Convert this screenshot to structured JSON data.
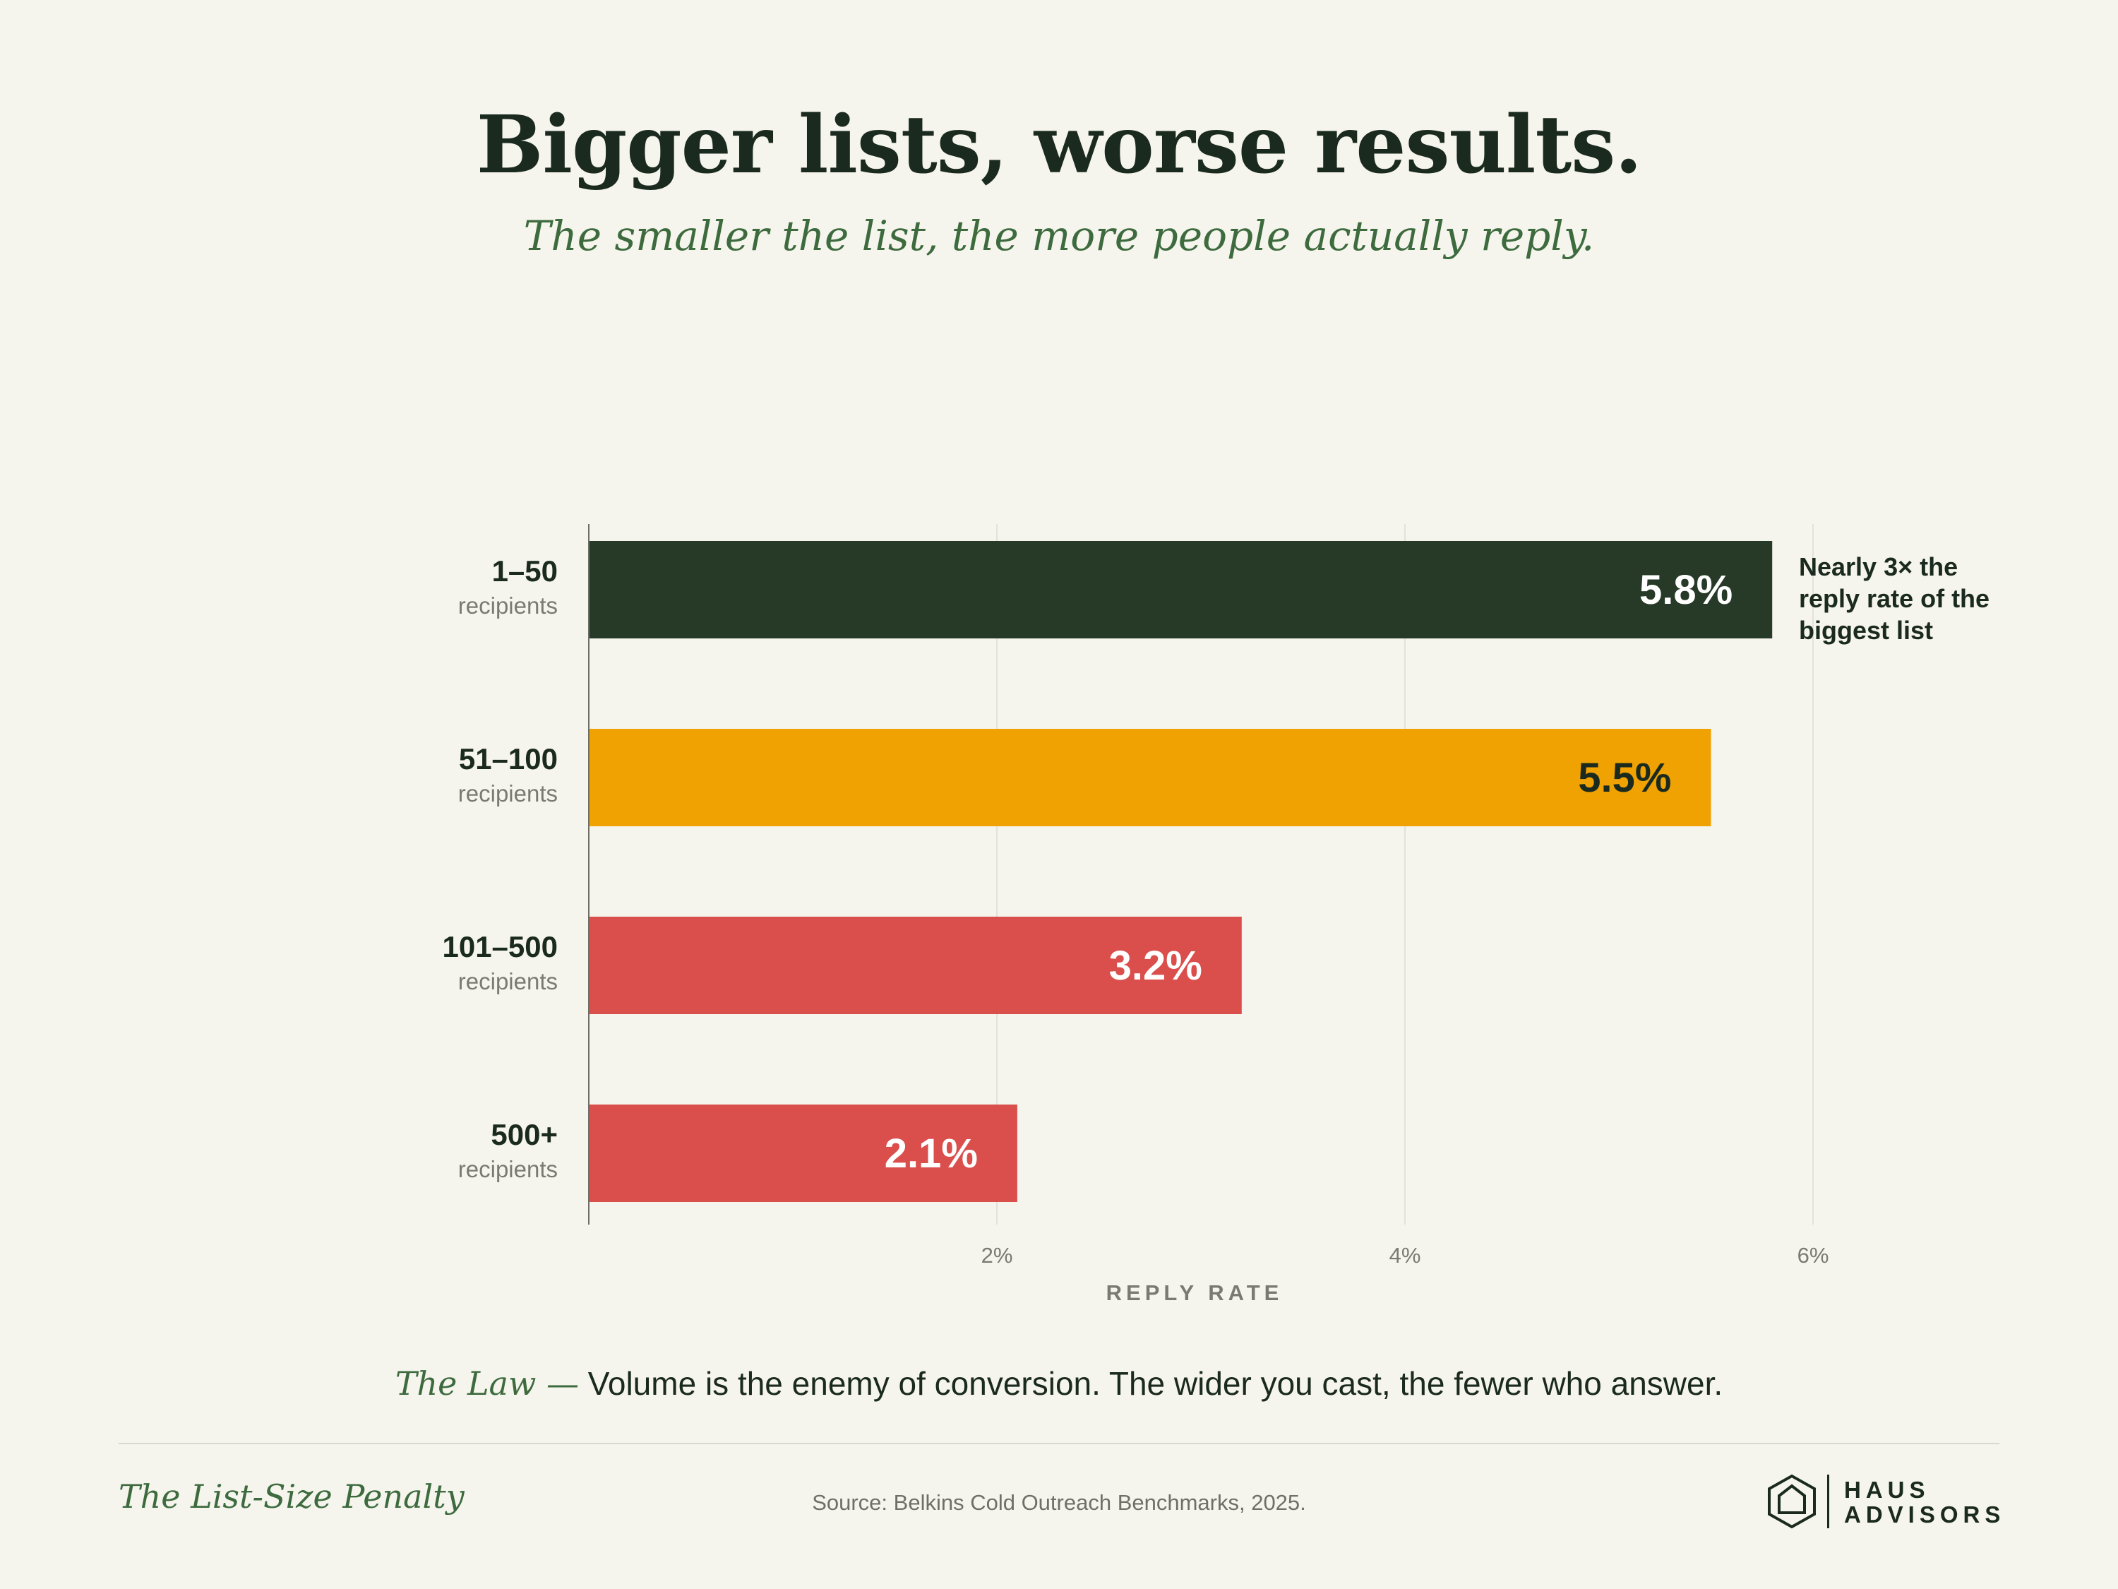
{
  "header": {
    "title": "Bigger lists, worse results.",
    "subtitle": "The smaller the list, the more people actually reply."
  },
  "annotation": "Nearly 3× the reply rate of the biggest list",
  "law": {
    "prefix": "The Law —",
    "text": "Volume is the enemy of conversion. The wider you cast, the fewer who answer."
  },
  "footer": {
    "title": "The List-Size Penalty",
    "source": "Source: Belkins Cold Outreach Benchmarks, 2025.",
    "logo_line1": "HAUS",
    "logo_line2": "ADVISORS"
  },
  "colors": {
    "dark_green": "#273a27",
    "amber": "#f0a202",
    "red": "#da4f4c"
  },
  "chart_data": {
    "type": "bar",
    "orientation": "horizontal",
    "categories": [
      "1–50",
      "51–100",
      "101–500",
      "500+"
    ],
    "category_sublabel": "recipients",
    "values": [
      5.8,
      5.5,
      3.2,
      2.1
    ],
    "value_labels": [
      "5.8%",
      "5.5%",
      "3.2%",
      "2.1%"
    ],
    "bar_colors": [
      "#273a27",
      "#f0a202",
      "#da4f4c",
      "#da4f4c"
    ],
    "value_label_colors": [
      "#ffffff",
      "#1b2a1e",
      "#ffffff",
      "#ffffff"
    ],
    "xlim": [
      0,
      7
    ],
    "xticks": [
      2,
      4,
      6
    ],
    "xtick_labels": [
      "2%",
      "4%",
      "6%"
    ],
    "xlabel": "REPLY RATE",
    "grid": true
  }
}
